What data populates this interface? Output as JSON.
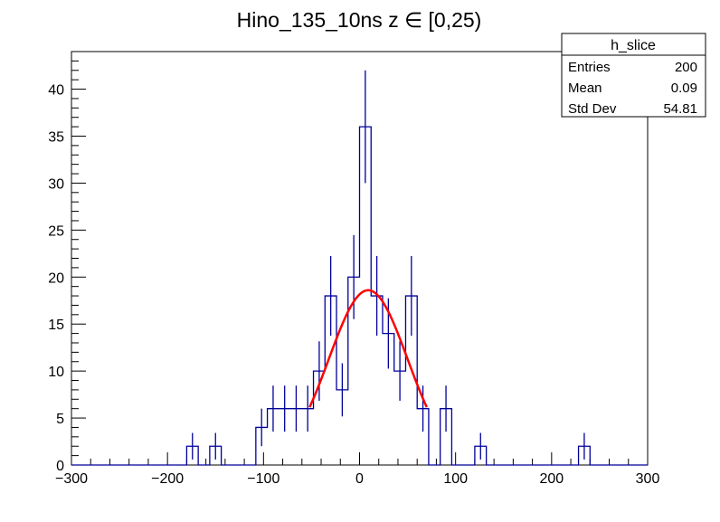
{
  "chart_data": {
    "type": "bar",
    "title": "Hino_135_10ns z  ∈ [0,25)",
    "xlabel": "",
    "ylabel": "",
    "xlim": [
      -300,
      300
    ],
    "ylim": [
      0,
      44
    ],
    "bin_width": 12,
    "bin_low_edges": [
      -180,
      -156,
      -108,
      -96,
      -84,
      -72,
      -60,
      -48,
      -36,
      -24,
      -12,
      0,
      12,
      24,
      36,
      48,
      60,
      84,
      120,
      228
    ],
    "values": [
      2,
      2,
      4,
      6,
      6,
      6,
      6,
      10,
      18,
      8,
      20,
      36,
      18,
      14,
      10,
      18,
      6,
      6,
      2,
      2
    ],
    "x_ticks": [
      "−300",
      "−200",
      "−100",
      "0",
      "100",
      "200",
      "300"
    ],
    "x_tick_values": [
      -300,
      -200,
      -100,
      0,
      100,
      200,
      300
    ],
    "y_ticks": [
      "0",
      "5",
      "10",
      "15",
      "20",
      "25",
      "30",
      "35",
      "40"
    ],
    "y_tick_values": [
      0,
      5,
      10,
      15,
      20,
      25,
      30,
      35,
      40
    ],
    "fit": {
      "type": "gaus",
      "amplitude": 18.6,
      "mean": 9,
      "sigma": 41,
      "range": [
        -52,
        70
      ],
      "color": "#ff0000"
    },
    "hist_color": "#000099",
    "stats": {
      "name": "h_slice",
      "rows": [
        {
          "label": "Entries",
          "value": "200"
        },
        {
          "label": "Mean",
          "value": "0.09"
        },
        {
          "label": "Std Dev",
          "value": "54.81"
        }
      ]
    }
  }
}
